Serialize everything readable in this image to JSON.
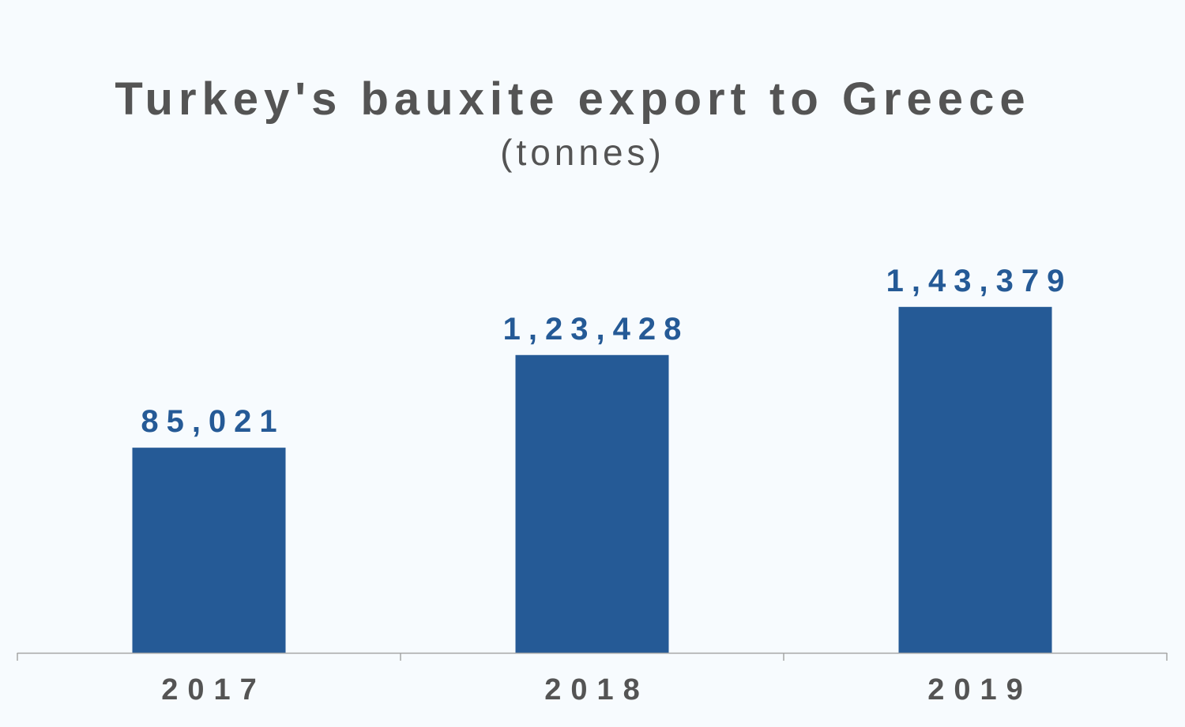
{
  "chart_data": {
    "type": "bar",
    "title": "Turkey's bauxite export to Greece",
    "subtitle": "(tonnes)",
    "categories": [
      "2017",
      "2018",
      "2019"
    ],
    "values": [
      85021,
      123428,
      143379
    ],
    "value_labels": [
      "85,021",
      "1,23,428",
      "1,43,379"
    ],
    "xlabel": "",
    "ylabel": "",
    "ylim": [
      0,
      160000
    ],
    "grid": false,
    "legend": "none",
    "colors": {
      "bar": "#255a96",
      "value_label": "#255a96",
      "text": "#545454",
      "axis": "#a6a6a6",
      "background": "#f7fbfe"
    }
  }
}
